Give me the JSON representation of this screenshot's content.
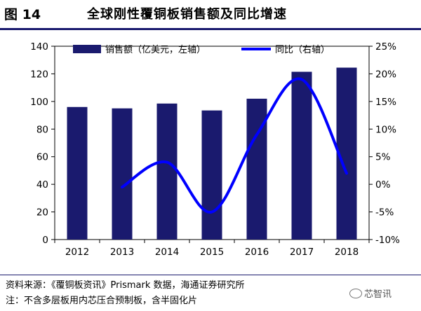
{
  "figure": {
    "label": "图 14",
    "title": "全球刚性覆铜板销售额及同比增速"
  },
  "chart_data": {
    "type": "bar",
    "categories": [
      "2012",
      "2013",
      "2014",
      "2015",
      "2016",
      "2017",
      "2018"
    ],
    "series": [
      {
        "name": "销售额（亿美元，左轴）",
        "type": "bar",
        "axis": "left",
        "values": [
          96,
          95,
          98.5,
          93.5,
          102,
          121.5,
          124.5
        ]
      },
      {
        "name": "同比（右轴）",
        "type": "line",
        "axis": "right",
        "smooth": true,
        "x": [
          "2013",
          "2014",
          "2015",
          "2016",
          "2017",
          "2018"
        ],
        "values": [
          -0.5,
          4,
          -5,
          9,
          19,
          2
        ]
      }
    ],
    "y_left": {
      "min": 0,
      "max": 140,
      "ticks": [
        "0",
        "20",
        "40",
        "60",
        "80",
        "100",
        "120",
        "140"
      ]
    },
    "y_right": {
      "min": -10,
      "max": 25,
      "ticks": [
        "-10%",
        "-5%",
        "0%",
        "5%",
        "10%",
        "15%",
        "20%",
        "25%"
      ]
    },
    "legend": {
      "position": "top-center"
    },
    "colors": {
      "bar": "#1a1a6e",
      "line": "#0000ff"
    },
    "grid": false
  },
  "footer": {
    "source": "资料来源：《覆铜板资讯》Prismark 数据，海通证券研究所",
    "note": "注：不含多层板用内芯压合预制板，含半固化片",
    "watermark": "芯智讯"
  }
}
